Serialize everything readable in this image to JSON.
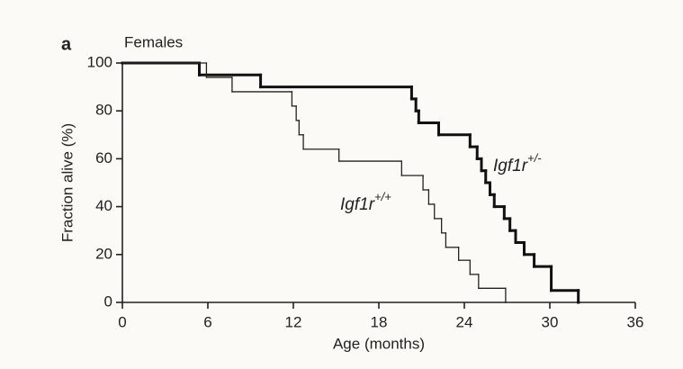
{
  "chart_data": {
    "type": "step",
    "panel": "a",
    "title": "Females",
    "xlabel": "Age (months)",
    "ylabel": "Fraction alive (%)",
    "xlim": [
      0,
      36
    ],
    "xticks": [
      0,
      6,
      12,
      18,
      24,
      30,
      36
    ],
    "ylim": [
      0,
      100
    ],
    "yticks": [
      0,
      20,
      40,
      60,
      80,
      100
    ],
    "series": [
      {
        "name": "Igf1r",
        "superscript": "+/-",
        "color": "#111",
        "width": 3,
        "x": [
          0,
          5.4,
          9.7,
          20.3,
          20.6,
          20.8,
          22.2,
          24.4,
          24.9,
          25.2,
          25.5,
          25.8,
          26.1,
          26.8,
          27.2,
          27.6,
          28.2,
          28.9,
          30.1,
          32
        ],
        "values": [
          100,
          95,
          90,
          85,
          80,
          75,
          70,
          65,
          60,
          55,
          50,
          45,
          40,
          35,
          30,
          25,
          20,
          15,
          5,
          0
        ]
      },
      {
        "name": "Igf1r",
        "superscript": "+/+",
        "color": "#222",
        "width": 1.3,
        "x": [
          0,
          5.9,
          7.7,
          11.9,
          12.2,
          12.4,
          12.7,
          15.2,
          19.6,
          21.1,
          21.5,
          21.9,
          22.4,
          22.7,
          23.6,
          24.4,
          25,
          26.9
        ],
        "values": [
          100,
          94,
          88,
          82,
          76,
          70,
          64,
          59,
          53,
          47,
          41,
          35,
          29,
          23,
          17.6,
          11.7,
          5.9,
          0
        ]
      }
    ]
  }
}
